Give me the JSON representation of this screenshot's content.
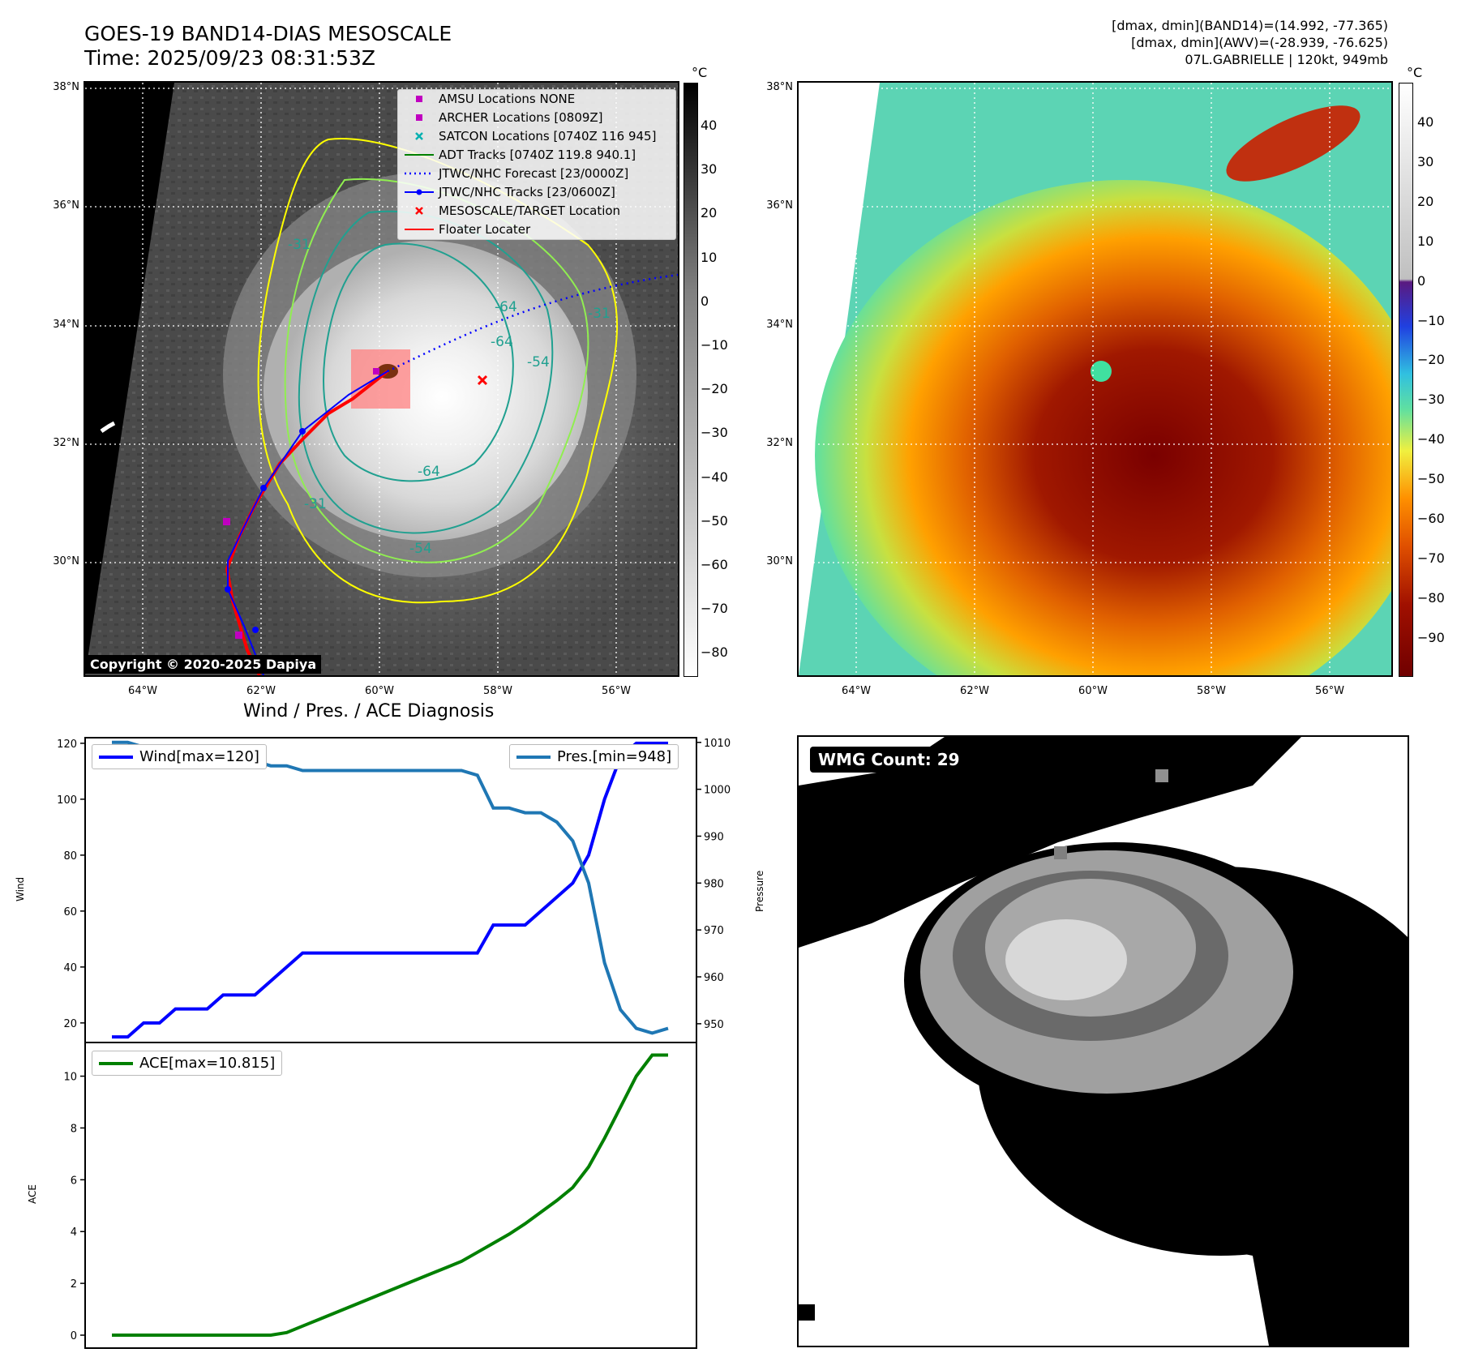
{
  "header": {
    "title_line1": "GOES-19 BAND14-DIAS MESOSCALE",
    "title_line2": "Time: 2025/09/23 08:31:53Z",
    "right_line1": "[dmax, dmin](BAND14)=(14.992, -77.365)",
    "right_line2": "[dmax, dmin](AWV)=(-28.939, -76.625)",
    "right_line3": "07L.GABRIELLE | 120kt, 949mb"
  },
  "map_axes": {
    "lat_ticks": [
      "38°N",
      "36°N",
      "34°N",
      "32°N",
      "30°N"
    ],
    "lon_ticks": [
      "64°W",
      "62°W",
      "60°W",
      "58°W",
      "56°W"
    ]
  },
  "ir_colorbar": {
    "unit": "°C",
    "ticks": [
      "40",
      "30",
      "20",
      "10",
      "0",
      "−10",
      "−20",
      "−30",
      "−40",
      "−50",
      "−60",
      "−70",
      "−80"
    ]
  },
  "wv_colorbar": {
    "unit": "°C",
    "ticks": [
      "40",
      "30",
      "20",
      "10",
      "0",
      "−10",
      "−20",
      "−30",
      "−40",
      "−50",
      "−60",
      "−70",
      "−80",
      "−90"
    ]
  },
  "map_legend": [
    {
      "label": "AMSU Locations NONE",
      "symbol": "square",
      "color": "#c000c0"
    },
    {
      "label": "ARCHER Locations [0809Z]",
      "symbol": "square",
      "color": "#c000c0"
    },
    {
      "label": "SATCON Locations [0740Z 116 945]",
      "symbol": "x",
      "color": "#00b0b0"
    },
    {
      "label": "ADT Tracks [0740Z 119.8 940.1]",
      "symbol": "line",
      "color": "#008000"
    },
    {
      "label": "JTWC/NHC Forecast [23/0000Z]",
      "symbol": "dotted",
      "color": "#0000ff"
    },
    {
      "label": "JTWC/NHC Tracks [23/0600Z]",
      "symbol": "line-dot",
      "color": "#0000ff"
    },
    {
      "label": "MESOSCALE/TARGET Location",
      "symbol": "x",
      "color": "#ff0000"
    },
    {
      "label": "Floater Locater",
      "symbol": "line",
      "color": "#ff0000"
    }
  ],
  "contour_labels": [
    "-31",
    "-64",
    "-64",
    "-54",
    "-64",
    "-31",
    "-31",
    "-54"
  ],
  "copyright": "Copyright © 2020-2025 Dapiya",
  "wmg": {
    "label": "WMG Count: 29"
  },
  "colors": {
    "wind": "#0000ff",
    "pressure": "#1f77b4",
    "ace": "#008000",
    "contour_yellow": "#ffff00",
    "contour_green": "#90ee50",
    "contour_teal": "#20a090"
  },
  "chart_data": [
    {
      "type": "line",
      "title": "Wind / Pres. / ACE Diagnosis",
      "ylabel": "Wind",
      "ylabel_right": "Pressure",
      "ylim": [
        13,
        122
      ],
      "ylim_right": [
        946,
        1011
      ],
      "yticks": [
        20,
        40,
        60,
        80,
        100,
        120
      ],
      "yticks_right": [
        950,
        960,
        970,
        980,
        990,
        1000,
        1010
      ],
      "x": [
        0,
        1,
        2,
        3,
        4,
        5,
        6,
        7,
        8,
        9,
        10,
        11,
        12,
        13,
        14,
        15,
        16,
        17,
        18,
        19,
        20,
        21,
        22,
        23,
        24,
        25,
        26,
        27,
        28,
        29,
        30,
        31,
        32,
        33,
        34,
        35
      ],
      "series": [
        {
          "name": "Wind[max=120]",
          "axis": "left",
          "values": [
            15,
            15,
            20,
            20,
            25,
            25,
            25,
            30,
            30,
            30,
            35,
            40,
            45,
            45,
            45,
            45,
            45,
            45,
            45,
            45,
            45,
            45,
            45,
            45,
            55,
            55,
            55,
            60,
            65,
            70,
            80,
            100,
            115,
            120,
            120,
            120
          ]
        },
        {
          "name": "Pres.[min=948]",
          "axis": "right",
          "values": [
            1010,
            1010,
            1009,
            1009,
            1008,
            1008,
            1007,
            1006,
            1006,
            1006,
            1005,
            1005,
            1004,
            1004,
            1004,
            1004,
            1004,
            1004,
            1004,
            1004,
            1004,
            1004,
            1004,
            1003,
            996,
            996,
            995,
            995,
            993,
            989,
            980,
            963,
            953,
            949,
            948,
            949
          ]
        }
      ]
    },
    {
      "type": "line",
      "ylabel": "ACE",
      "ylim": [
        -0.5,
        11.3
      ],
      "yticks": [
        0,
        2,
        4,
        6,
        8,
        10
      ],
      "x": [
        0,
        1,
        2,
        3,
        4,
        5,
        6,
        7,
        8,
        9,
        10,
        11,
        12,
        13,
        14,
        15,
        16,
        17,
        18,
        19,
        20,
        21,
        22,
        23,
        24,
        25,
        26,
        27,
        28,
        29,
        30,
        31,
        32,
        33,
        34,
        35
      ],
      "series": [
        {
          "name": "ACE[max=10.815]",
          "values": [
            0,
            0,
            0,
            0,
            0,
            0,
            0,
            0,
            0,
            0,
            0,
            0.1,
            0.35,
            0.6,
            0.85,
            1.1,
            1.35,
            1.6,
            1.85,
            2.1,
            2.35,
            2.6,
            2.85,
            3.2,
            3.55,
            3.9,
            4.3,
            4.75,
            5.2,
            5.7,
            6.5,
            7.6,
            8.8,
            10.0,
            10.815,
            10.815
          ]
        }
      ]
    }
  ]
}
